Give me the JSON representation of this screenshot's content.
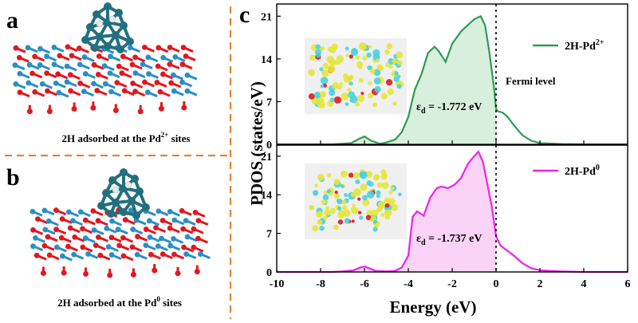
{
  "panels": {
    "a": {
      "letter": "a",
      "caption_prefix": "2H adsorbed at the Pd",
      "caption_sup": "2+",
      "caption_suffix": " sites"
    },
    "b": {
      "letter": "b",
      "caption_prefix": "2H adsorbed at the Pd",
      "caption_sup": "0",
      "caption_suffix": " sites"
    },
    "c": {
      "letter": "c"
    }
  },
  "colors": {
    "divider": "#e8843a",
    "pd2_line": "#2e9a55",
    "pd2_fill": "#d8efdc",
    "pd0_line": "#ee22ee",
    "pd0_fill": "#fbd3f7",
    "atom_pd": "#226f80",
    "atom_o": "#e01820",
    "atom_si": "#2a8fc4",
    "atom_h": "#e8e8e8",
    "isosurface_yellow": "#e6e63a",
    "isosurface_cyan": "#4ad0e0"
  },
  "chart_data": [
    {
      "type": "area",
      "panel": "top",
      "series": [
        {
          "name": "2H-Pd2+",
          "x": [
            -10,
            -7.5,
            -7,
            -6.6,
            -6.3,
            -6.0,
            -5.7,
            -5.3,
            -5.0,
            -4.6,
            -4.3,
            -4.0,
            -3.7,
            -3.4,
            -3.1,
            -2.8,
            -2.6,
            -2.3,
            -2.0,
            -1.6,
            -1.3,
            -1.0,
            -0.7,
            -0.5,
            -0.3,
            -0.1,
            0.0,
            0.1,
            0.3,
            0.5,
            0.8,
            1.2,
            1.6,
            2.0,
            3.0,
            4.0,
            5.0,
            6.0
          ],
          "y": [
            0,
            0,
            0.1,
            0.2,
            0.8,
            1.3,
            0.6,
            0.1,
            0.3,
            0.8,
            2.0,
            4.5,
            9.0,
            11.5,
            15.0,
            16.0,
            15.2,
            13.5,
            16.5,
            18.5,
            19.5,
            20.5,
            21.0,
            19.5,
            15.0,
            9.5,
            5.8,
            5.4,
            5.2,
            4.6,
            3.2,
            1.5,
            0.6,
            0.2,
            0.05,
            0,
            0,
            0
          ]
        }
      ],
      "xlim": [
        -10,
        6
      ],
      "ylim": [
        0,
        23
      ],
      "yticks": [
        0,
        7,
        14,
        21
      ],
      "ytick_labels": [
        "0",
        "7",
        "14",
        "21"
      ],
      "legend": {
        "label": "2H-Pd",
        "sup": "2+",
        "position": "top-right"
      },
      "annotation": {
        "symbol": "ε",
        "subscript": "d",
        "text": " = -1.772 eV"
      },
      "fermi_label": "Fermi level",
      "fermi_energy": 0
    },
    {
      "type": "area",
      "panel": "bottom",
      "series": [
        {
          "name": "2H-Pd0",
          "x": [
            -10,
            -7.5,
            -7,
            -6.5,
            -6.2,
            -6.0,
            -5.8,
            -5.5,
            -5.0,
            -4.6,
            -4.3,
            -4.0,
            -3.8,
            -3.6,
            -3.3,
            -3.0,
            -2.7,
            -2.5,
            -2.2,
            -1.9,
            -1.6,
            -1.3,
            -1.0,
            -0.8,
            -0.6,
            -0.4,
            -0.2,
            0.0,
            0.2,
            0.4,
            0.8,
            1.2,
            1.6,
            2.0,
            3.0,
            4.0,
            5.0,
            6.0
          ],
          "y": [
            0,
            0,
            0.1,
            0.3,
            0.8,
            1.0,
            0.7,
            0.2,
            0.1,
            0.2,
            0.8,
            3.0,
            10.0,
            11.0,
            10.2,
            13.5,
            15.2,
            15.5,
            15.2,
            15.8,
            17.0,
            19.5,
            21.0,
            21.8,
            20.0,
            16.0,
            12.0,
            6.5,
            4.8,
            4.2,
            3.0,
            1.6,
            0.7,
            0.3,
            0.1,
            0,
            0,
            0
          ]
        }
      ],
      "xlim": [
        -10,
        6
      ],
      "ylim": [
        0,
        23
      ],
      "yticks": [
        0,
        7,
        14,
        21
      ],
      "ytick_labels": [
        "0",
        "7",
        "14",
        "21"
      ],
      "xticks": [
        -10,
        -8,
        -6,
        -4,
        -2,
        0,
        2,
        4,
        6
      ],
      "xtick_labels": [
        "-10",
        "-8",
        "-6",
        "-4",
        "-2",
        "0",
        "2",
        "4",
        "6"
      ],
      "legend": {
        "label": "2H-Pd",
        "sup": "0",
        "position": "top-right"
      },
      "annotation": {
        "symbol": "ε",
        "subscript": "d",
        "text": " = -1.737 eV"
      },
      "fermi_energy": 0
    }
  ],
  "axes": {
    "xlabel": "Energy (eV)",
    "ylabel": "PDOS (states/eV)"
  }
}
